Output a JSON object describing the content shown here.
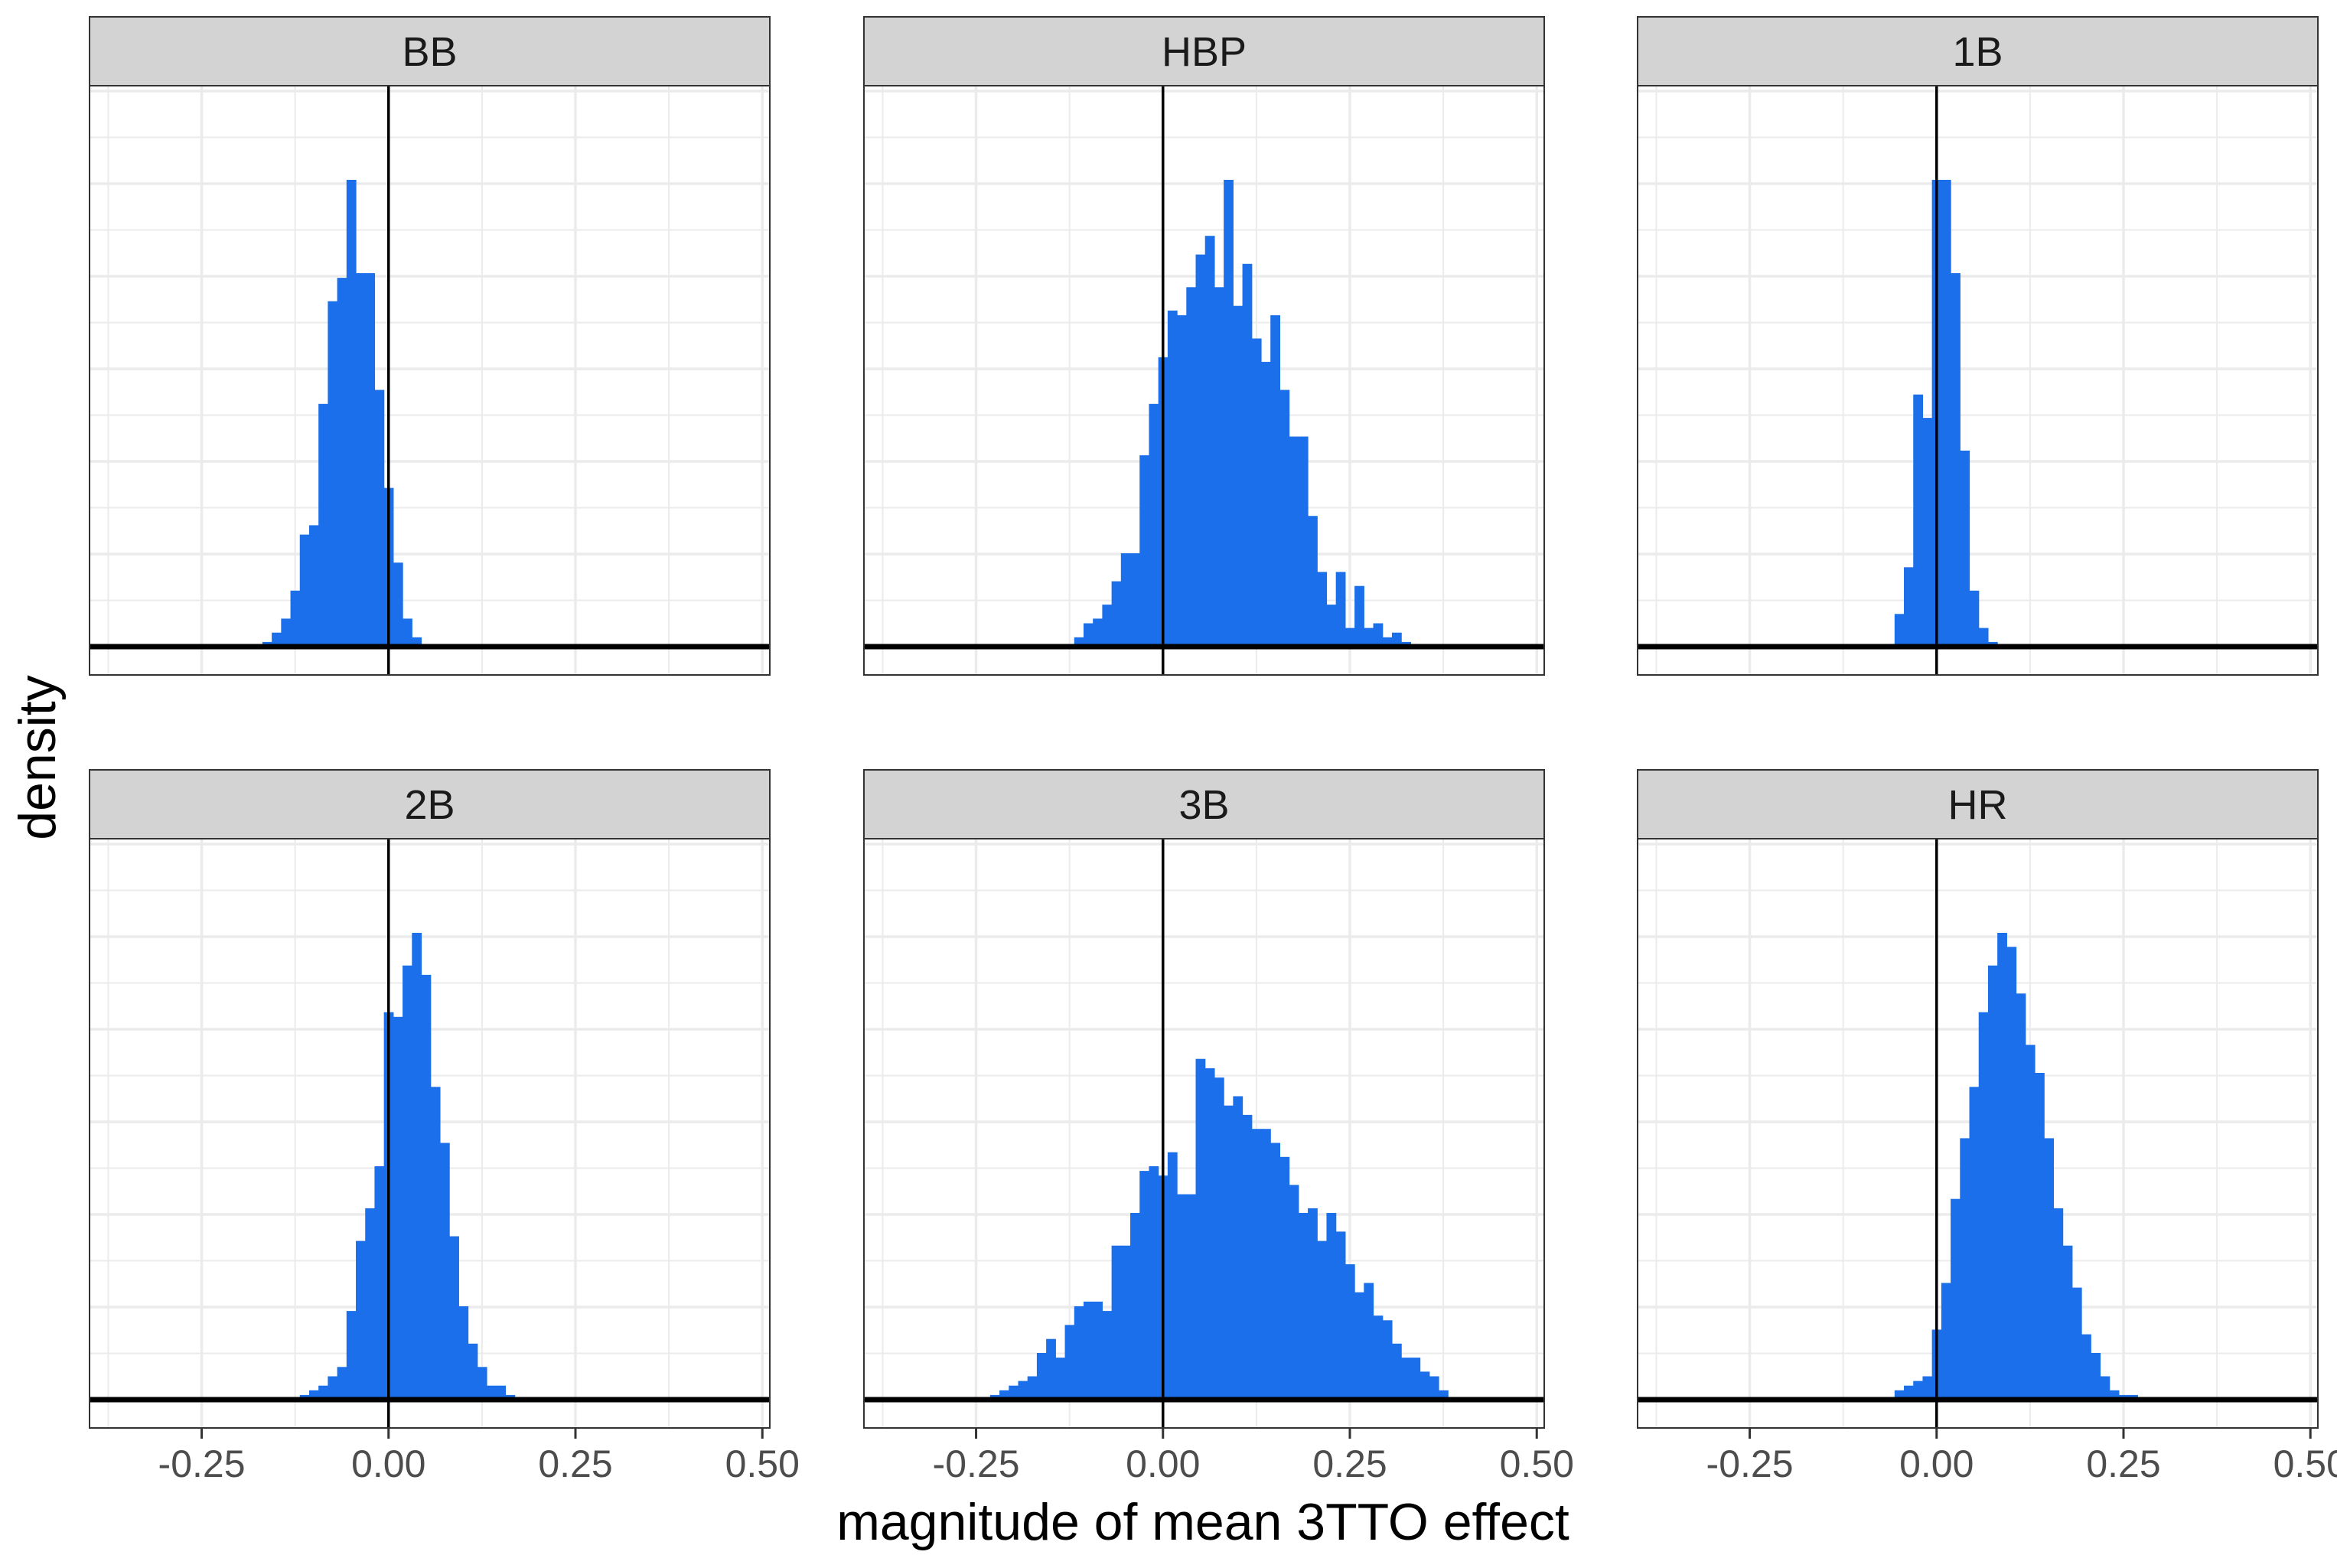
{
  "figure": {
    "xlabel": "magnitude of mean 3TTO effect",
    "ylabel": "density",
    "x_tick_labels": [
      "-0.25",
      "0.00",
      "0.25",
      "0.50"
    ]
  },
  "colors": {
    "bar": "#1c6fea",
    "strip": "#d3d3d3",
    "grid": "#ebebeb",
    "axis": "#000000"
  },
  "chart_data": [
    {
      "type": "bar",
      "panel": "BB",
      "bin_width": 0.0125,
      "xlim": [
        -0.4,
        0.51
      ],
      "x_breaks": [
        -0.25,
        0.0,
        0.25,
        0.5
      ],
      "vline": 0.0,
      "y_scale": "relative density (max = 1)",
      "bins": [
        {
          "x": -0.1625,
          "y": 0.01
        },
        {
          "x": -0.15,
          "y": 0.03
        },
        {
          "x": -0.1375,
          "y": 0.06
        },
        {
          "x": -0.125,
          "y": 0.12
        },
        {
          "x": -0.1125,
          "y": 0.24
        },
        {
          "x": -0.1,
          "y": 0.26
        },
        {
          "x": -0.0875,
          "y": 0.52
        },
        {
          "x": -0.075,
          "y": 0.74
        },
        {
          "x": -0.0625,
          "y": 0.79
        },
        {
          "x": -0.05,
          "y": 1.0
        },
        {
          "x": -0.0375,
          "y": 0.8
        },
        {
          "x": -0.025,
          "y": 0.8
        },
        {
          "x": -0.0125,
          "y": 0.55
        },
        {
          "x": 0.0,
          "y": 0.34
        },
        {
          "x": 0.0125,
          "y": 0.18
        },
        {
          "x": 0.025,
          "y": 0.06
        },
        {
          "x": 0.0375,
          "y": 0.02
        }
      ]
    },
    {
      "type": "bar",
      "panel": "HBP",
      "bin_width": 0.0125,
      "xlim": [
        -0.4,
        0.51
      ],
      "x_breaks": [
        -0.25,
        0.0,
        0.25,
        0.5
      ],
      "vline": 0.0,
      "y_scale": "relative density (max = 1)",
      "bins": [
        {
          "x": -0.1125,
          "y": 0.02
        },
        {
          "x": -0.1,
          "y": 0.05
        },
        {
          "x": -0.0875,
          "y": 0.06
        },
        {
          "x": -0.075,
          "y": 0.09
        },
        {
          "x": -0.0625,
          "y": 0.14
        },
        {
          "x": -0.05,
          "y": 0.2
        },
        {
          "x": -0.0375,
          "y": 0.2
        },
        {
          "x": -0.025,
          "y": 0.41
        },
        {
          "x": -0.0125,
          "y": 0.52
        },
        {
          "x": 0.0,
          "y": 0.62
        },
        {
          "x": 0.0125,
          "y": 0.72
        },
        {
          "x": 0.025,
          "y": 0.71
        },
        {
          "x": 0.0375,
          "y": 0.77
        },
        {
          "x": 0.05,
          "y": 0.84
        },
        {
          "x": 0.0625,
          "y": 0.88
        },
        {
          "x": 0.075,
          "y": 0.77
        },
        {
          "x": 0.0875,
          "y": 1.0
        },
        {
          "x": 0.1,
          "y": 0.73
        },
        {
          "x": 0.1125,
          "y": 0.82
        },
        {
          "x": 0.125,
          "y": 0.66
        },
        {
          "x": 0.1375,
          "y": 0.61
        },
        {
          "x": 0.15,
          "y": 0.71
        },
        {
          "x": 0.1625,
          "y": 0.55
        },
        {
          "x": 0.175,
          "y": 0.45
        },
        {
          "x": 0.1875,
          "y": 0.45
        },
        {
          "x": 0.2,
          "y": 0.28
        },
        {
          "x": 0.2125,
          "y": 0.16
        },
        {
          "x": 0.225,
          "y": 0.09
        },
        {
          "x": 0.2375,
          "y": 0.16
        },
        {
          "x": 0.25,
          "y": 0.04
        },
        {
          "x": 0.2625,
          "y": 0.13
        },
        {
          "x": 0.275,
          "y": 0.04
        },
        {
          "x": 0.2875,
          "y": 0.05
        },
        {
          "x": 0.3,
          "y": 0.02
        },
        {
          "x": 0.3125,
          "y": 0.03
        },
        {
          "x": 0.325,
          "y": 0.01
        }
      ]
    },
    {
      "type": "bar",
      "panel": "1B",
      "bin_width": 0.0125,
      "xlim": [
        -0.4,
        0.51
      ],
      "x_breaks": [
        -0.25,
        0.0,
        0.25,
        0.5
      ],
      "vline": 0.0,
      "y_scale": "relative density (max = 1)",
      "bins": [
        {
          "x": -0.05,
          "y": 0.07
        },
        {
          "x": -0.0375,
          "y": 0.17
        },
        {
          "x": -0.025,
          "y": 0.54
        },
        {
          "x": -0.0125,
          "y": 0.49
        },
        {
          "x": 0.0,
          "y": 1.0
        },
        {
          "x": 0.0125,
          "y": 1.0
        },
        {
          "x": 0.025,
          "y": 0.8
        },
        {
          "x": 0.0375,
          "y": 0.42
        },
        {
          "x": 0.05,
          "y": 0.12
        },
        {
          "x": 0.0625,
          "y": 0.04
        },
        {
          "x": 0.075,
          "y": 0.01
        }
      ]
    },
    {
      "type": "bar",
      "panel": "2B",
      "bin_width": 0.0125,
      "xlim": [
        -0.4,
        0.51
      ],
      "x_breaks": [
        -0.25,
        0.0,
        0.25,
        0.5
      ],
      "vline": 0.0,
      "y_scale": "relative density (max = 1)",
      "bins": [
        {
          "x": -0.1125,
          "y": 0.01
        },
        {
          "x": -0.1,
          "y": 0.02
        },
        {
          "x": -0.0875,
          "y": 0.03
        },
        {
          "x": -0.075,
          "y": 0.05
        },
        {
          "x": -0.0625,
          "y": 0.07
        },
        {
          "x": -0.05,
          "y": 0.19
        },
        {
          "x": -0.0375,
          "y": 0.34
        },
        {
          "x": -0.025,
          "y": 0.41
        },
        {
          "x": -0.0125,
          "y": 0.5
        },
        {
          "x": 0.0,
          "y": 0.83
        },
        {
          "x": 0.0125,
          "y": 0.82
        },
        {
          "x": 0.025,
          "y": 0.93
        },
        {
          "x": 0.0375,
          "y": 1.0
        },
        {
          "x": 0.05,
          "y": 0.91
        },
        {
          "x": 0.0625,
          "y": 0.67
        },
        {
          "x": 0.075,
          "y": 0.55
        },
        {
          "x": 0.0875,
          "y": 0.35
        },
        {
          "x": 0.1,
          "y": 0.2
        },
        {
          "x": 0.1125,
          "y": 0.12
        },
        {
          "x": 0.125,
          "y": 0.07
        },
        {
          "x": 0.1375,
          "y": 0.03
        },
        {
          "x": 0.15,
          "y": 0.03
        },
        {
          "x": 0.1625,
          "y": 0.01
        }
      ]
    },
    {
      "type": "bar",
      "panel": "3B",
      "bin_width": 0.0125,
      "xlim": [
        -0.4,
        0.51
      ],
      "x_breaks": [
        -0.25,
        0.0,
        0.25,
        0.5
      ],
      "vline": 0.0,
      "y_scale": "relative density (max = 1)",
      "bins": [
        {
          "x": -0.225,
          "y": 0.01
        },
        {
          "x": -0.2125,
          "y": 0.02
        },
        {
          "x": -0.2,
          "y": 0.03
        },
        {
          "x": -0.1875,
          "y": 0.04
        },
        {
          "x": -0.175,
          "y": 0.05
        },
        {
          "x": -0.1625,
          "y": 0.1
        },
        {
          "x": -0.15,
          "y": 0.13
        },
        {
          "x": -0.1375,
          "y": 0.09
        },
        {
          "x": -0.125,
          "y": 0.16
        },
        {
          "x": -0.1125,
          "y": 0.2
        },
        {
          "x": -0.1,
          "y": 0.21
        },
        {
          "x": -0.0875,
          "y": 0.21
        },
        {
          "x": -0.075,
          "y": 0.19
        },
        {
          "x": -0.0625,
          "y": 0.33
        },
        {
          "x": -0.05,
          "y": 0.33
        },
        {
          "x": -0.0375,
          "y": 0.4
        },
        {
          "x": -0.025,
          "y": 0.49
        },
        {
          "x": -0.0125,
          "y": 0.5
        },
        {
          "x": 0.0,
          "y": 0.48
        },
        {
          "x": 0.0125,
          "y": 0.53
        },
        {
          "x": 0.025,
          "y": 0.44
        },
        {
          "x": 0.0375,
          "y": 0.44
        },
        {
          "x": 0.05,
          "y": 0.73
        },
        {
          "x": 0.0625,
          "y": 0.71
        },
        {
          "x": 0.075,
          "y": 0.69
        },
        {
          "x": 0.0875,
          "y": 0.63
        },
        {
          "x": 0.1,
          "y": 0.65
        },
        {
          "x": 0.1125,
          "y": 0.61
        },
        {
          "x": 0.125,
          "y": 0.58
        },
        {
          "x": 0.1375,
          "y": 0.58
        },
        {
          "x": 0.15,
          "y": 0.55
        },
        {
          "x": 0.1625,
          "y": 0.52
        },
        {
          "x": 0.175,
          "y": 0.46
        },
        {
          "x": 0.1875,
          "y": 0.4
        },
        {
          "x": 0.2,
          "y": 0.41
        },
        {
          "x": 0.2125,
          "y": 0.34
        },
        {
          "x": 0.225,
          "y": 0.4
        },
        {
          "x": 0.2375,
          "y": 0.36
        },
        {
          "x": 0.25,
          "y": 0.29
        },
        {
          "x": 0.2625,
          "y": 0.23
        },
        {
          "x": 0.275,
          "y": 0.25
        },
        {
          "x": 0.2875,
          "y": 0.18
        },
        {
          "x": 0.3,
          "y": 0.17
        },
        {
          "x": 0.3125,
          "y": 0.12
        },
        {
          "x": 0.325,
          "y": 0.09
        },
        {
          "x": 0.3375,
          "y": 0.09
        },
        {
          "x": 0.35,
          "y": 0.06
        },
        {
          "x": 0.3625,
          "y": 0.05
        },
        {
          "x": 0.375,
          "y": 0.02
        }
      ]
    },
    {
      "type": "bar",
      "panel": "HR",
      "bin_width": 0.0125,
      "xlim": [
        -0.4,
        0.51
      ],
      "x_breaks": [
        -0.25,
        0.0,
        0.25,
        0.5
      ],
      "vline": 0.0,
      "y_scale": "relative density (max = 1)",
      "bins": [
        {
          "x": -0.05,
          "y": 0.02
        },
        {
          "x": -0.0375,
          "y": 0.03
        },
        {
          "x": -0.025,
          "y": 0.04
        },
        {
          "x": -0.0125,
          "y": 0.05
        },
        {
          "x": 0.0,
          "y": 0.15
        },
        {
          "x": 0.0125,
          "y": 0.25
        },
        {
          "x": 0.025,
          "y": 0.43
        },
        {
          "x": 0.0375,
          "y": 0.56
        },
        {
          "x": 0.05,
          "y": 0.67
        },
        {
          "x": 0.0625,
          "y": 0.83
        },
        {
          "x": 0.075,
          "y": 0.93
        },
        {
          "x": 0.0875,
          "y": 1.0
        },
        {
          "x": 0.1,
          "y": 0.97
        },
        {
          "x": 0.1125,
          "y": 0.87
        },
        {
          "x": 0.125,
          "y": 0.76
        },
        {
          "x": 0.1375,
          "y": 0.7
        },
        {
          "x": 0.15,
          "y": 0.56
        },
        {
          "x": 0.1625,
          "y": 0.41
        },
        {
          "x": 0.175,
          "y": 0.33
        },
        {
          "x": 0.1875,
          "y": 0.24
        },
        {
          "x": 0.2,
          "y": 0.14
        },
        {
          "x": 0.2125,
          "y": 0.1
        },
        {
          "x": 0.225,
          "y": 0.05
        },
        {
          "x": 0.2375,
          "y": 0.02
        },
        {
          "x": 0.25,
          "y": 0.01
        },
        {
          "x": 0.2625,
          "y": 0.01
        }
      ]
    }
  ]
}
